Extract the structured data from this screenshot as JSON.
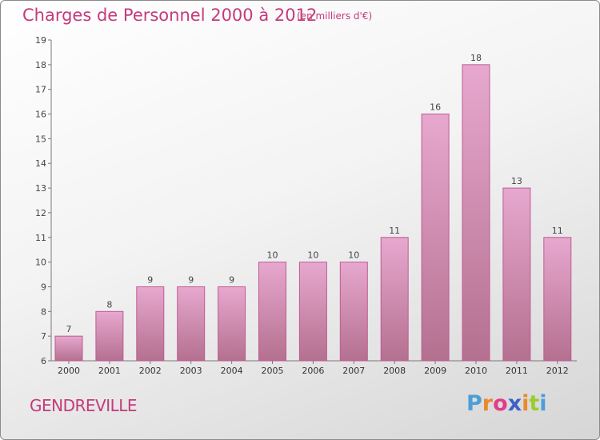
{
  "header": {
    "title": "Charges de Personnel 2000 à 2012",
    "subtitle": "(en milliers d'€)"
  },
  "footer": {
    "town": "GENDREVILLE",
    "logo_text": "Proxiti",
    "logo_colors": [
      "#4a9fd8",
      "#e98a2b",
      "#e23c8a",
      "#3c62c8",
      "#e98a2b",
      "#9acd32",
      "#4a9fd8"
    ]
  },
  "colors": {
    "accent": "#c53a7c",
    "bar_top": "#e7a8cf",
    "bar_bottom": "#b4708f",
    "bar_stroke": "#c05a92"
  },
  "chart_data": {
    "type": "bar",
    "title": "Charges de Personnel 2000 à 2012",
    "subtitle": "(en milliers d'€)",
    "categories": [
      "2000",
      "2001",
      "2002",
      "2003",
      "2004",
      "2005",
      "2006",
      "2007",
      "2008",
      "2009",
      "2010",
      "2011",
      "2012"
    ],
    "values": [
      7,
      8,
      9,
      9,
      9,
      10,
      10,
      10,
      11,
      16,
      18,
      13,
      11
    ],
    "ylim": [
      6,
      19
    ],
    "yticks": [
      6,
      7,
      8,
      9,
      10,
      11,
      12,
      13,
      14,
      15,
      16,
      17,
      18,
      19
    ],
    "grid": false,
    "legend": "none"
  }
}
